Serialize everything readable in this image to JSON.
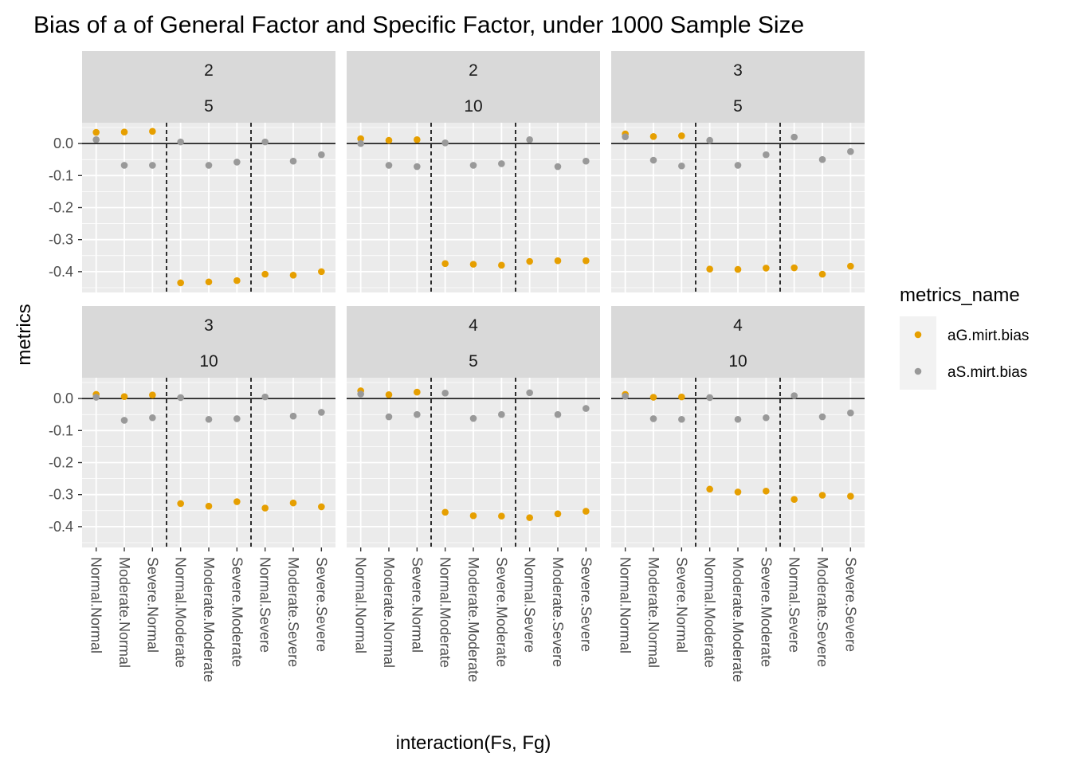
{
  "chart_data": {
    "type": "scatter",
    "title": "Bias of a of General Factor and Specific Factor, under 1000 Sample Size",
    "xlabel": "interaction(Fs, Fg)",
    "ylabel": "metrics",
    "categories": [
      "Normal.Normal",
      "Moderate.Normal",
      "Severe.Normal",
      "Normal.Moderate",
      "Moderate.Moderate",
      "Severe.Moderate",
      "Normal.Severe",
      "Moderate.Severe",
      "Severe.Severe"
    ],
    "y_ticks": [
      "0.0",
      "-0.1",
      "-0.2",
      "-0.3",
      "-0.4"
    ],
    "ylim": [
      -0.465,
      0.065
    ],
    "reference_line_y": 0,
    "vertical_dashed_lines_between": [
      [
        3,
        4
      ],
      [
        6,
        7
      ]
    ],
    "grid": true,
    "legend": {
      "title": "metrics_name",
      "position": "right",
      "entries": [
        {
          "name": "aG.mirt.bias",
          "color": "#E69F00"
        },
        {
          "name": "aS.mirt.bias",
          "color": "#999999"
        }
      ]
    },
    "facets": [
      {
        "label_top": "2",
        "label_bottom": "5",
        "series": [
          {
            "name": "aG.mirt.bias",
            "values": [
              0.035,
              0.036,
              0.038,
              -0.435,
              -0.432,
              -0.428,
              -0.408,
              -0.411,
              -0.4
            ]
          },
          {
            "name": "aS.mirt.bias",
            "values": [
              0.012,
              -0.068,
              -0.068,
              0.005,
              -0.068,
              -0.058,
              0.005,
              -0.055,
              -0.035
            ]
          }
        ]
      },
      {
        "label_top": "2",
        "label_bottom": "10",
        "series": [
          {
            "name": "aG.mirt.bias",
            "values": [
              0.015,
              0.01,
              0.012,
              -0.375,
              -0.377,
              -0.38,
              -0.368,
              -0.366,
              -0.366
            ]
          },
          {
            "name": "aS.mirt.bias",
            "values": [
              0.0,
              -0.068,
              -0.072,
              0.002,
              -0.068,
              -0.063,
              0.012,
              -0.072,
              -0.055
            ]
          }
        ]
      },
      {
        "label_top": "3",
        "label_bottom": "5",
        "series": [
          {
            "name": "aG.mirt.bias",
            "values": [
              0.03,
              0.022,
              0.024,
              -0.392,
              -0.393,
              -0.389,
              -0.388,
              -0.408,
              -0.383
            ]
          },
          {
            "name": "aS.mirt.bias",
            "values": [
              0.021,
              -0.052,
              -0.07,
              0.01,
              -0.068,
              -0.035,
              0.02,
              -0.05,
              -0.025
            ]
          }
        ]
      },
      {
        "label_top": "3",
        "label_bottom": "10",
        "series": [
          {
            "name": "aG.mirt.bias",
            "values": [
              0.013,
              0.006,
              0.011,
              -0.328,
              -0.336,
              -0.322,
              -0.342,
              -0.326,
              -0.338
            ]
          },
          {
            "name": "aS.mirt.bias",
            "values": [
              0.004,
              -0.068,
              -0.06,
              0.003,
              -0.065,
              -0.063,
              0.005,
              -0.055,
              -0.043
            ]
          }
        ]
      },
      {
        "label_top": "4",
        "label_bottom": "5",
        "series": [
          {
            "name": "aG.mirt.bias",
            "values": [
              0.024,
              0.012,
              0.02,
              -0.355,
              -0.366,
              -0.367,
              -0.372,
              -0.36,
              -0.352
            ]
          },
          {
            "name": "aS.mirt.bias",
            "values": [
              0.014,
              -0.057,
              -0.05,
              0.017,
              -0.062,
              -0.05,
              0.018,
              -0.05,
              -0.031
            ]
          }
        ]
      },
      {
        "label_top": "4",
        "label_bottom": "10",
        "series": [
          {
            "name": "aG.mirt.bias",
            "values": [
              0.013,
              0.004,
              0.005,
              -0.283,
              -0.292,
              -0.289,
              -0.315,
              -0.302,
              -0.305
            ]
          },
          {
            "name": "aS.mirt.bias",
            "values": [
              0.007,
              -0.063,
              -0.065,
              0.003,
              -0.065,
              -0.06,
              0.009,
              -0.057,
              -0.045
            ]
          }
        ]
      }
    ]
  }
}
